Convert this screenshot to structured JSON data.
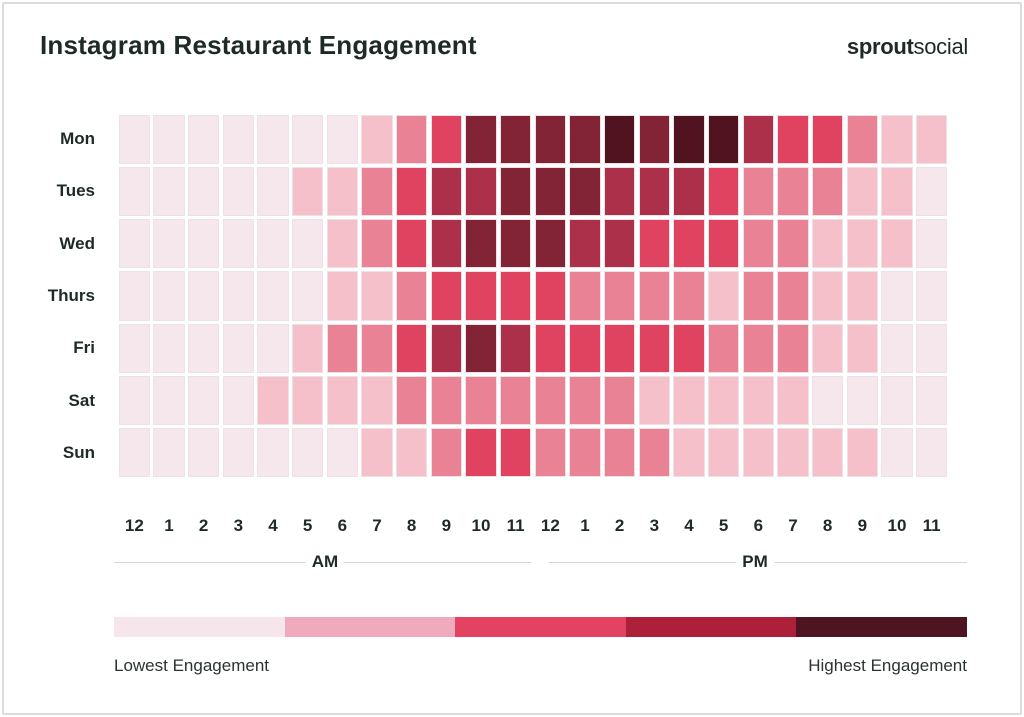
{
  "title": "Instagram Restaurant Engagement",
  "logo": {
    "part1": "sprout",
    "part2": "social"
  },
  "chart_data": {
    "type": "heatmap",
    "title": "Instagram Restaurant Engagement",
    "rows": [
      "Mon",
      "Tues",
      "Wed",
      "Thurs",
      "Fri",
      "Sat",
      "Sun"
    ],
    "columns": [
      "12",
      "1",
      "2",
      "3",
      "4",
      "5",
      "6",
      "7",
      "8",
      "9",
      "10",
      "11",
      "12",
      "1",
      "2",
      "3",
      "4",
      "5",
      "6",
      "7",
      "8",
      "9",
      "10",
      "11"
    ],
    "period_labels": [
      "AM",
      "PM"
    ],
    "scale_min": 0,
    "scale_max": 6,
    "values": [
      [
        0,
        0,
        0,
        0,
        0,
        0,
        0,
        1,
        2,
        3,
        5,
        5,
        5,
        5,
        6,
        5,
        6,
        6,
        4,
        3,
        3,
        2,
        1,
        1
      ],
      [
        0,
        0,
        0,
        0,
        0,
        1,
        1,
        2,
        3,
        4,
        4,
        5,
        5,
        5,
        4,
        4,
        4,
        3,
        2,
        2,
        2,
        1,
        1,
        0
      ],
      [
        0,
        0,
        0,
        0,
        0,
        0,
        1,
        2,
        3,
        4,
        5,
        5,
        5,
        4,
        4,
        3,
        3,
        3,
        2,
        2,
        1,
        1,
        1,
        0
      ],
      [
        0,
        0,
        0,
        0,
        0,
        0,
        1,
        1,
        2,
        3,
        3,
        3,
        3,
        2,
        2,
        2,
        2,
        1,
        2,
        2,
        1,
        1,
        0,
        0
      ],
      [
        0,
        0,
        0,
        0,
        0,
        1,
        2,
        2,
        3,
        4,
        5,
        4,
        3,
        3,
        3,
        3,
        3,
        2,
        2,
        2,
        1,
        1,
        0,
        0
      ],
      [
        0,
        0,
        0,
        0,
        1,
        1,
        1,
        1,
        2,
        2,
        2,
        2,
        2,
        2,
        2,
        1,
        1,
        1,
        1,
        1,
        0,
        0,
        0,
        0
      ],
      [
        0,
        0,
        0,
        0,
        0,
        0,
        0,
        1,
        1,
        2,
        3,
        3,
        2,
        2,
        2,
        2,
        1,
        1,
        1,
        1,
        1,
        1,
        0,
        0
      ]
    ],
    "cell_colors": [
      "#f5e7ec",
      "#f5c0ca",
      "#ea8296",
      "#e0435f",
      "#ac304a",
      "#822436",
      "#521320"
    ],
    "legend": {
      "low_label": "Lowest Engagement",
      "high_label": "Highest Engagement",
      "colors": [
        "#f6e6ec",
        "#f0aabd",
        "#e34261",
        "#ad2039",
        "#4e1422"
      ]
    }
  }
}
